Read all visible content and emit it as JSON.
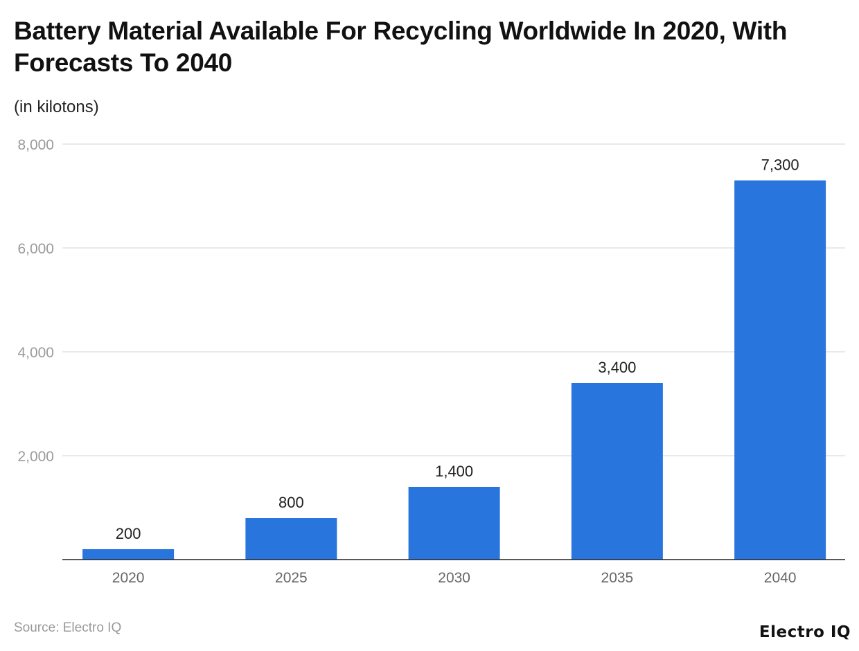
{
  "chart_data": {
    "type": "bar",
    "title": "Battery Material Available For Recycling Worldwide In 2020, With Forecasts To 2040",
    "subtitle": "(in kilotons)",
    "categories": [
      "2020",
      "2025",
      "2030",
      "2035",
      "2040"
    ],
    "values": [
      200,
      800,
      1400,
      3400,
      7300
    ],
    "data_labels": [
      "200",
      "800",
      "1,400",
      "3,400",
      "7,300"
    ],
    "ylim": [
      0,
      8000
    ],
    "yticks": [
      2000,
      4000,
      6000,
      8000
    ],
    "ytick_labels": [
      "2,000",
      "4,000",
      "6,000",
      "8,000"
    ],
    "grid": true,
    "bar_color": "#2876DD"
  },
  "footer": {
    "source": "Source: Electro IQ",
    "logo": "Electro IQ"
  }
}
